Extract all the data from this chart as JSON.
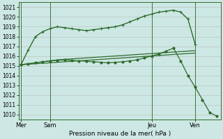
{
  "bg_color": "#cde8e4",
  "grid_color": "#b0b0b0",
  "line_color": "#2d6b2d",
  "xlabel": "Pression niveau de la mer( hPa )",
  "ylim": [
    1009.5,
    1021.5
  ],
  "yticks": [
    1010,
    1011,
    1012,
    1013,
    1014,
    1015,
    1016,
    1017,
    1018,
    1019,
    1020,
    1021
  ],
  "xtick_labels": [
    "Mer",
    "Sam",
    "Jeu",
    "Ven"
  ],
  "xlim": [
    0,
    28
  ],
  "vline_x": [
    0,
    4,
    18,
    24
  ],
  "series1_x": [
    0,
    1,
    2,
    3,
    4,
    5,
    6,
    7,
    8,
    9,
    10,
    11,
    12,
    13,
    14,
    15,
    16,
    17,
    18,
    19,
    20,
    21,
    22,
    23,
    24
  ],
  "series1_y": [
    1015.1,
    1015.15,
    1015.2,
    1015.25,
    1015.3,
    1015.35,
    1015.4,
    1015.45,
    1015.5,
    1015.55,
    1015.6,
    1015.65,
    1015.7,
    1015.75,
    1015.8,
    1015.85,
    1015.9,
    1015.95,
    1016.0,
    1016.05,
    1016.1,
    1016.15,
    1016.2,
    1016.25,
    1016.3
  ],
  "series2_x": [
    0,
    1,
    2,
    3,
    4,
    5,
    6,
    7,
    8,
    9,
    10,
    11,
    12,
    13,
    14,
    15,
    16,
    17,
    18,
    19,
    20,
    21,
    22,
    23,
    24
  ],
  "series2_y": [
    1015.1,
    1015.2,
    1015.3,
    1015.4,
    1015.5,
    1015.6,
    1015.65,
    1015.7,
    1015.75,
    1015.8,
    1015.85,
    1015.9,
    1015.95,
    1016.0,
    1016.05,
    1016.1,
    1016.15,
    1016.2,
    1016.25,
    1016.3,
    1016.35,
    1016.4,
    1016.45,
    1016.5,
    1016.55
  ],
  "series3_x": [
    0,
    1,
    2,
    3,
    4,
    5,
    6,
    7,
    8,
    9,
    10,
    11,
    12,
    13,
    14,
    15,
    16,
    17,
    18,
    19,
    20,
    21,
    22,
    23,
    24
  ],
  "series3_y": [
    1015.1,
    1016.6,
    1018.0,
    1018.5,
    1018.8,
    1019.0,
    1018.9,
    1018.8,
    1018.7,
    1018.6,
    1018.7,
    1018.8,
    1018.9,
    1019.0,
    1019.2,
    1019.5,
    1019.8,
    1020.1,
    1020.3,
    1020.5,
    1020.6,
    1020.7,
    1020.5,
    1019.8,
    1017.2
  ],
  "series4_x": [
    0,
    1,
    2,
    3,
    4,
    5,
    6,
    7,
    8,
    9,
    10,
    11,
    12,
    13,
    14,
    15,
    16,
    17,
    18,
    19,
    20,
    21,
    22,
    23,
    24,
    25,
    26,
    27
  ],
  "series4_y": [
    1015.1,
    1015.2,
    1015.3,
    1015.4,
    1015.5,
    1015.55,
    1015.6,
    1015.55,
    1015.5,
    1015.45,
    1015.4,
    1015.35,
    1015.3,
    1015.35,
    1015.4,
    1015.5,
    1015.6,
    1015.8,
    1016.0,
    1016.2,
    1016.5,
    1016.8,
    1015.5,
    1014.0,
    1012.8,
    1011.5,
    1010.2,
    1009.8
  ],
  "ylabel_fontsize": 6.5,
  "tick_fontsize": 5.5,
  "xtick_fontsize": 6.0
}
